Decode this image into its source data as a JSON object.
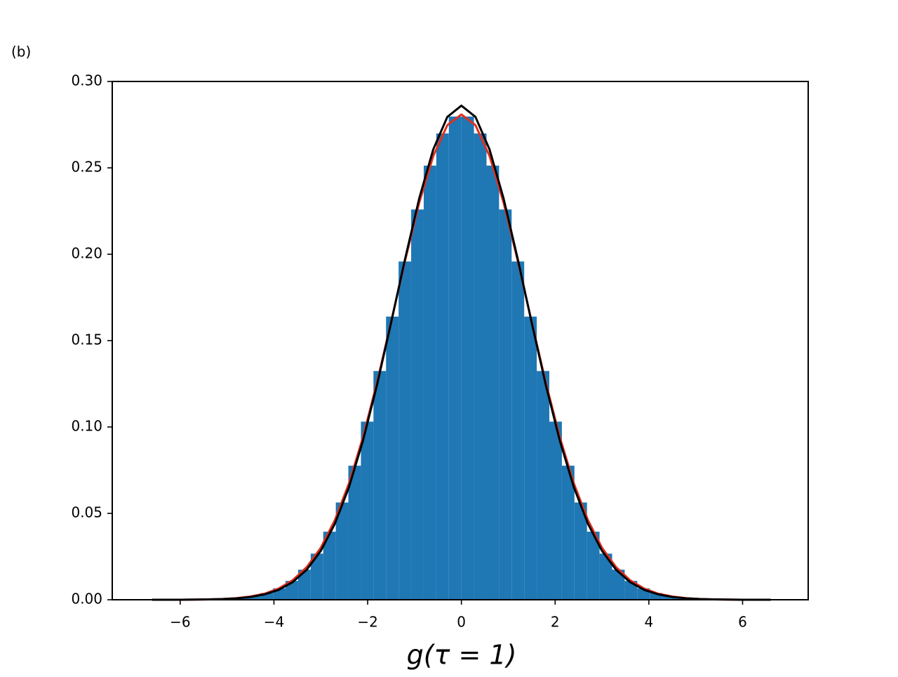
{
  "chart_data": {
    "type": "histogram",
    "panel_label": "(b)",
    "xlabel": "g(τ = 1)",
    "color": "#1f77b4",
    "bins": [
      -6.7,
      -6.432,
      -6.164,
      -5.896,
      -5.628,
      -5.36,
      -5.092,
      -4.824,
      -4.556,
      -4.288,
      -4.02,
      -3.752,
      -3.484,
      -3.216,
      -2.948,
      -2.68,
      -2.412,
      -2.144,
      -1.876,
      -1.608,
      -1.34,
      -1.072,
      -0.804,
      -0.536,
      -0.268,
      0,
      0.268,
      0.536,
      0.804,
      1.072,
      1.34,
      1.608,
      1.876,
      2.144,
      2.412,
      2.68,
      2.948,
      3.216,
      3.484,
      3.752,
      4.02,
      4.288,
      4.556,
      4.824,
      5.092,
      5.36,
      5.628,
      5.896,
      6.164,
      6.432,
      6.7
    ],
    "values": [
      0,
      0,
      0,
      0.0001,
      0.0002,
      0.0003,
      0.0006,
      0.0012,
      0.0022,
      0.0039,
      0.0066,
      0.0109,
      0.0174,
      0.0267,
      0.0394,
      0.0563,
      0.0776,
      0.1031,
      0.1324,
      0.1639,
      0.1958,
      0.2259,
      0.2513,
      0.2699,
      0.2797,
      0.2797,
      0.2699,
      0.2513,
      0.2259,
      0.1958,
      0.1639,
      0.1324,
      0.1031,
      0.0776,
      0.0563,
      0.0394,
      0.0267,
      0.0174,
      0.0109,
      0.0066,
      0.0039,
      0.0022,
      0.0012,
      0.0006,
      0.0003,
      0.0002,
      0.0001,
      0,
      0,
      0
    ],
    "lines": {
      "x": [
        -6.6,
        -6.3,
        -6.0,
        -5.7,
        -5.4,
        -5.1,
        -4.8,
        -4.5,
        -4.2,
        -3.9,
        -3.6,
        -3.3,
        -3.0,
        -2.7,
        -2.4,
        -2.1,
        -1.8,
        -1.5,
        -1.2,
        -0.9,
        -0.6,
        -0.3,
        0,
        0.3,
        0.6,
        0.9,
        1.2,
        1.5,
        1.8,
        2.1,
        2.4,
        2.7,
        3.0,
        3.3,
        3.6,
        3.9,
        4.2,
        4.5,
        4.8,
        5.1,
        5.4,
        5.7,
        6.0,
        6.3,
        6.6
      ],
      "series": [
        {
          "color": "#e0301e",
          "values": [
            0,
            0,
            0,
            0.0001,
            0.0002,
            0.0004,
            0.0009,
            0.0019,
            0.0035,
            0.0065,
            0.0113,
            0.0189,
            0.0301,
            0.0461,
            0.0673,
            0.0941,
            0.1258,
            0.1608,
            0.1965,
            0.2298,
            0.2569,
            0.2747,
            0.2809,
            0.2747,
            0.2569,
            0.2298,
            0.1965,
            0.1608,
            0.1258,
            0.0941,
            0.0673,
            0.0461,
            0.0301,
            0.0189,
            0.0113,
            0.0065,
            0.0035,
            0.0019,
            0.0009,
            0.0004,
            0.0002,
            0.0001,
            0,
            0,
            0
          ]
        },
        {
          "color": "#000000",
          "values": [
            0,
            0,
            0,
            0.0001,
            0.0002,
            0.0004,
            0.0008,
            0.0016,
            0.0031,
            0.0057,
            0.0102,
            0.0174,
            0.0283,
            0.044,
            0.0651,
            0.0921,
            0.1244,
            0.1604,
            0.1975,
            0.2323,
            0.2607,
            0.2795,
            0.286,
            0.2795,
            0.2607,
            0.2323,
            0.1975,
            0.1604,
            0.1244,
            0.0921,
            0.0651,
            0.044,
            0.0283,
            0.0174,
            0.0102,
            0.0057,
            0.0031,
            0.0016,
            0.0008,
            0.0004,
            0.0002,
            0.0001,
            0,
            0,
            0
          ]
        }
      ]
    },
    "xlim": [
      -7.45,
      7.4
    ],
    "ylim": [
      0,
      0.3
    ],
    "xticks": [
      {
        "value": -6,
        "label": "−6"
      },
      {
        "value": -4,
        "label": "−4"
      },
      {
        "value": -2,
        "label": "−2"
      },
      0,
      2,
      4,
      6
    ],
    "yticks": [
      {
        "value": 0,
        "label": "0.00"
      },
      {
        "value": 0.05,
        "label": "0.05"
      },
      {
        "value": 0.1,
        "label": "0.10"
      },
      {
        "value": 0.15,
        "label": "0.15"
      },
      {
        "value": 0.2,
        "label": "0.20"
      },
      {
        "value": 0.25,
        "label": "0.25"
      },
      {
        "value": 0.3,
        "label": "0.30"
      }
    ]
  }
}
